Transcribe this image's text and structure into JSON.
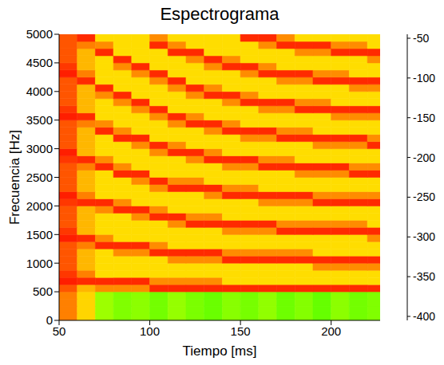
{
  "chart_data": {
    "type": "heatmap",
    "title": "Espectrograma",
    "x_label": "Tiempo [ms]",
    "y_label": "Frecuencia [Hz]",
    "xlim": [
      50,
      227
    ],
    "xticks": [
      50,
      100,
      150,
      200
    ],
    "ylim": [
      0,
      5000
    ],
    "yticks": [
      0,
      500,
      1000,
      1500,
      2000,
      2500,
      3000,
      3500,
      4000,
      4500,
      5000
    ],
    "x_bins": [
      50,
      60,
      70,
      80,
      90,
      100,
      110,
      120,
      130,
      140,
      150,
      160,
      170,
      180,
      190,
      200,
      210,
      220,
      227
    ],
    "y_bins": [
      0,
      125,
      250,
      375,
      500,
      625,
      750,
      875,
      1000,
      1125,
      1250,
      1375,
      1500,
      1625,
      1750,
      1875,
      2000,
      2125,
      2250,
      2375,
      2500,
      2625,
      2750,
      2875,
      3000,
      3125,
      3250,
      3375,
      3500,
      3625,
      3750,
      3875,
      4000,
      4125,
      4250,
      4375,
      4500,
      4625,
      4750,
      4875,
      5000
    ],
    "cells": [
      [
        -75,
        -95,
        -128,
        -135,
        -132,
        -138,
        -130,
        -136,
        -140,
        -133,
        -137,
        -131,
        -139,
        -134,
        -141,
        -132,
        -138,
        -135
      ],
      [
        -75,
        -95,
        -128,
        -135,
        -132,
        -138,
        -130,
        -136,
        -140,
        -133,
        -137,
        -131,
        -139,
        -134,
        -141,
        -132,
        -138,
        -135
      ],
      [
        -75,
        -95,
        -128,
        -135,
        -132,
        -138,
        -130,
        -136,
        -140,
        -133,
        -137,
        -131,
        -139,
        -134,
        -141,
        -132,
        -138,
        -135
      ],
      [
        -75,
        -95,
        -128,
        -135,
        -132,
        -138,
        -130,
        -136,
        -140,
        -133,
        -137,
        -131,
        -139,
        -134,
        -141,
        -132,
        -138,
        -135
      ],
      [
        -65,
        -88,
        -78,
        -78,
        -78,
        -55,
        -55,
        -55,
        -55,
        -55,
        -55,
        -55,
        -55,
        -55,
        -55,
        -55,
        -55,
        -55
      ],
      [
        -52,
        -55,
        -55,
        -55,
        -55,
        -78,
        -78,
        -78,
        -78,
        -97,
        -97,
        -97,
        -97,
        -97,
        -97,
        -97,
        -97,
        -97
      ],
      [
        -58,
        -75,
        -97,
        -97,
        -97,
        -97,
        -97,
        -97,
        -97,
        -97,
        -97,
        -97,
        -97,
        -97,
        -97,
        -97,
        -97,
        -97
      ],
      [
        -65,
        -88,
        -97,
        -97,
        -97,
        -97,
        -97,
        -97,
        -97,
        -97,
        -97,
        -97,
        -97,
        -97,
        -78,
        -78,
        -78,
        -78
      ],
      [
        -65,
        -88,
        -97,
        -97,
        -97,
        -97,
        -78,
        -78,
        -78,
        -55,
        -55,
        -55,
        -55,
        -55,
        -55,
        -55,
        -55,
        -55
      ],
      [
        -65,
        -88,
        -97,
        -78,
        -78,
        -55,
        -55,
        -55,
        -55,
        -78,
        -78,
        -78,
        -78,
        -78,
        -97,
        -97,
        -97,
        -97
      ],
      [
        -65,
        -75,
        -55,
        -55,
        -55,
        -78,
        -97,
        -97,
        -97,
        -97,
        -97,
        -97,
        -97,
        -97,
        -97,
        -97,
        -97,
        -97
      ],
      [
        -52,
        -55,
        -78,
        -97,
        -97,
        -97,
        -97,
        -97,
        -97,
        -97,
        -97,
        -97,
        -97,
        -97,
        -97,
        -97,
        -97,
        -78
      ],
      [
        -58,
        -88,
        -97,
        -97,
        -97,
        -97,
        -97,
        -97,
        -97,
        -78,
        -78,
        -78,
        -55,
        -55,
        -55,
        -55,
        -55,
        -55
      ],
      [
        -65,
        -88,
        -97,
        -97,
        -97,
        -97,
        -78,
        -55,
        -55,
        -55,
        -55,
        -55,
        -78,
        -78,
        -78,
        -78,
        -78,
        -97
      ],
      [
        -65,
        -88,
        -97,
        -97,
        -78,
        -55,
        -55,
        -78,
        -78,
        -97,
        -97,
        -97,
        -97,
        -97,
        -97,
        -97,
        -97,
        -97
      ],
      [
        -65,
        -88,
        -78,
        -55,
        -55,
        -78,
        -97,
        -97,
        -97,
        -97,
        -97,
        -97,
        -97,
        -97,
        -97,
        -97,
        -97,
        -97
      ],
      [
        -58,
        -55,
        -55,
        -78,
        -97,
        -97,
        -97,
        -97,
        -97,
        -97,
        -97,
        -78,
        -78,
        -78,
        -55,
        -55,
        -55,
        -55
      ],
      [
        -52,
        -75,
        -97,
        -97,
        -97,
        -97,
        -97,
        -97,
        -78,
        -55,
        -55,
        -55,
        -55,
        -55,
        -78,
        -78,
        -78,
        -78
      ],
      [
        -65,
        -88,
        -97,
        -97,
        -97,
        -78,
        -55,
        -55,
        -55,
        -78,
        -78,
        -97,
        -97,
        -97,
        -97,
        -97,
        -97,
        -97
      ],
      [
        -65,
        -88,
        -97,
        -97,
        -78,
        -55,
        -78,
        -78,
        -97,
        -97,
        -97,
        -97,
        -97,
        -97,
        -97,
        -97,
        -97,
        -97
      ],
      [
        -65,
        -88,
        -97,
        -55,
        -55,
        -97,
        -97,
        -97,
        -97,
        -97,
        -97,
        -97,
        -97,
        -78,
        -78,
        -78,
        -55,
        -55
      ],
      [
        -65,
        -75,
        -55,
        -78,
        -97,
        -97,
        -97,
        -97,
        -97,
        -78,
        -78,
        -55,
        -55,
        -55,
        -55,
        -55,
        -78,
        -78
      ],
      [
        -58,
        -55,
        -78,
        -97,
        -97,
        -97,
        -97,
        -78,
        -55,
        -55,
        -55,
        -78,
        -78,
        -97,
        -97,
        -97,
        -97,
        -97
      ],
      [
        -52,
        -88,
        -97,
        -97,
        -97,
        -78,
        -55,
        -55,
        -78,
        -97,
        -97,
        -97,
        -97,
        -97,
        -97,
        -97,
        -97,
        -97
      ],
      [
        -65,
        -88,
        -97,
        -97,
        -78,
        -55,
        -78,
        -97,
        -97,
        -97,
        -97,
        -97,
        -97,
        -97,
        -78,
        -78,
        -78,
        -55
      ],
      [
        -65,
        -88,
        -97,
        -55,
        -55,
        -97,
        -97,
        -97,
        -97,
        -97,
        -78,
        -78,
        -55,
        -55,
        -55,
        -55,
        -55,
        -78
      ],
      [
        -65,
        -88,
        -55,
        -78,
        -97,
        -97,
        -97,
        -97,
        -78,
        -55,
        -55,
        -55,
        -78,
        -78,
        -97,
        -97,
        -97,
        -97
      ],
      [
        -65,
        -75,
        -78,
        -97,
        -97,
        -97,
        -78,
        -55,
        -55,
        -78,
        -97,
        -97,
        -97,
        -97,
        -97,
        -97,
        -97,
        -97
      ],
      [
        -52,
        -55,
        -97,
        -97,
        -97,
        -78,
        -55,
        -78,
        -97,
        -97,
        -97,
        -97,
        -97,
        -97,
        -97,
        -78,
        -78,
        -78
      ],
      [
        -58,
        -88,
        -97,
        -97,
        -78,
        -55,
        -97,
        -97,
        -97,
        -97,
        -97,
        -78,
        -78,
        -55,
        -55,
        -55,
        -55,
        -55
      ],
      [
        -65,
        -88,
        -97,
        -78,
        -55,
        -97,
        -97,
        -97,
        -97,
        -78,
        -55,
        -55,
        -55,
        -78,
        -78,
        -97,
        -97,
        -97
      ],
      [
        -65,
        -88,
        -78,
        -55,
        -97,
        -97,
        -97,
        -78,
        -55,
        -55,
        -78,
        -97,
        -97,
        -97,
        -97,
        -97,
        -97,
        -97
      ],
      [
        -65,
        -88,
        -55,
        -97,
        -97,
        -97,
        -78,
        -55,
        -78,
        -97,
        -97,
        -97,
        -97,
        -97,
        -97,
        -97,
        -78,
        -78
      ],
      [
        -65,
        -55,
        -97,
        -97,
        -97,
        -78,
        -55,
        -97,
        -97,
        -97,
        -97,
        -97,
        -78,
        -78,
        -55,
        -55,
        -55,
        -55
      ],
      [
        -52,
        -75,
        -97,
        -97,
        -78,
        -55,
        -97,
        -97,
        -97,
        -97,
        -78,
        -55,
        -55,
        -55,
        -78,
        -78,
        -97,
        -97
      ],
      [
        -58,
        -88,
        -97,
        -78,
        -55,
        -97,
        -97,
        -97,
        -78,
        -55,
        -55,
        -78,
        -97,
        -97,
        -97,
        -97,
        -97,
        -97
      ],
      [
        -65,
        -88,
        -97,
        -55,
        -97,
        -97,
        -97,
        -78,
        -55,
        -78,
        -97,
        -97,
        -97,
        -97,
        -97,
        -97,
        -97,
        -78
      ],
      [
        -65,
        -88,
        -55,
        -97,
        -97,
        -97,
        -55,
        -55,
        -97,
        -97,
        -97,
        -97,
        -97,
        -78,
        -78,
        -55,
        -55,
        -55
      ],
      [
        -65,
        -75,
        -78,
        -97,
        -97,
        -55,
        -78,
        -97,
        -97,
        -97,
        -97,
        -78,
        -55,
        -55,
        -55,
        -78,
        -78,
        -97
      ],
      [
        -65,
        -55,
        -97,
        -97,
        -97,
        -78,
        -97,
        -97,
        -97,
        -97,
        -55,
        -55,
        -78,
        -97,
        -97,
        -97,
        -97,
        -97
      ]
    ],
    "colorbar_lim": [
      -405,
      -45
    ],
    "colorbar_ticks": [
      -50,
      -100,
      -150,
      -200,
      -250,
      -300,
      -350,
      -400
    ]
  }
}
